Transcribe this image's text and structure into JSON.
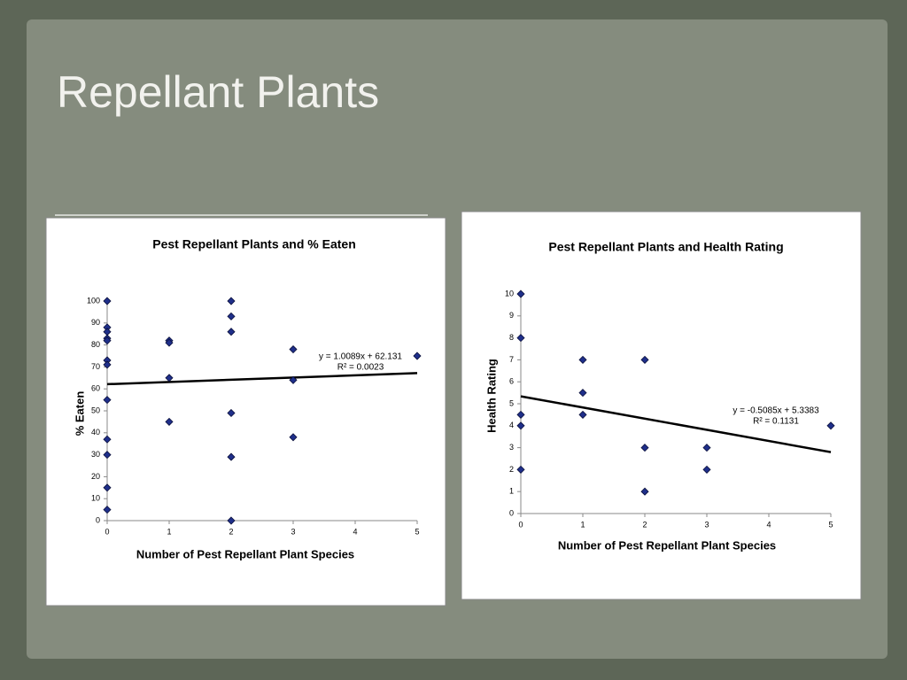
{
  "slide_title": "Repellant Plants",
  "chart_data": [
    {
      "type": "scatter",
      "title": "Pest Repellant Plants and % Eaten",
      "x_label": "Number of Pest Repellant Plant Species",
      "y_label": "% Eaten",
      "color": "#1f2f8a",
      "x": [
        0,
        0,
        0,
        0,
        0,
        0,
        0,
        0,
        0,
        0,
        0,
        0,
        1,
        1,
        1,
        1,
        2,
        2,
        2,
        2,
        2,
        2,
        3,
        3,
        3,
        5
      ],
      "values": [
        100,
        88,
        86,
        83,
        82,
        73,
        71,
        55,
        37,
        30,
        15,
        5,
        82,
        81,
        65,
        45,
        100,
        93,
        86,
        49,
        29,
        0,
        78,
        64,
        38,
        75
      ],
      "xlim": [
        0,
        5
      ],
      "xticks": [
        0,
        1,
        2,
        3,
        4,
        5
      ],
      "ylim": [
        0,
        100
      ],
      "yticks": [
        0,
        10,
        20,
        30,
        40,
        50,
        60,
        70,
        80,
        90,
        100
      ],
      "trendline": {
        "slope": 1.0089,
        "intercept": 62.131,
        "equation": "y = 1.0089x + 62.131",
        "r_squared": "R² = 0.0023"
      }
    },
    {
      "type": "scatter",
      "title": "Pest Repellant Plants and Health Rating",
      "x_label": "Number of Pest Repellant Plant Species",
      "y_label": "Health Rating",
      "color": "#1f2f8a",
      "x": [
        0,
        0,
        0,
        0,
        0,
        1,
        1,
        1,
        2,
        2,
        2,
        3,
        3,
        5
      ],
      "values": [
        10,
        8,
        4.5,
        4,
        2,
        7,
        5.5,
        4.5,
        7,
        3,
        1,
        3,
        2,
        4
      ],
      "xlim": [
        0,
        5
      ],
      "xticks": [
        0,
        1,
        2,
        3,
        4,
        5
      ],
      "ylim": [
        0,
        10
      ],
      "yticks": [
        0,
        1,
        2,
        3,
        4,
        5,
        6,
        7,
        8,
        9,
        10
      ],
      "trendline": {
        "slope": -0.5085,
        "intercept": 5.3383,
        "equation": "y = -0.5085x + 5.3383",
        "r_squared": "R² = 0.1131"
      }
    }
  ]
}
